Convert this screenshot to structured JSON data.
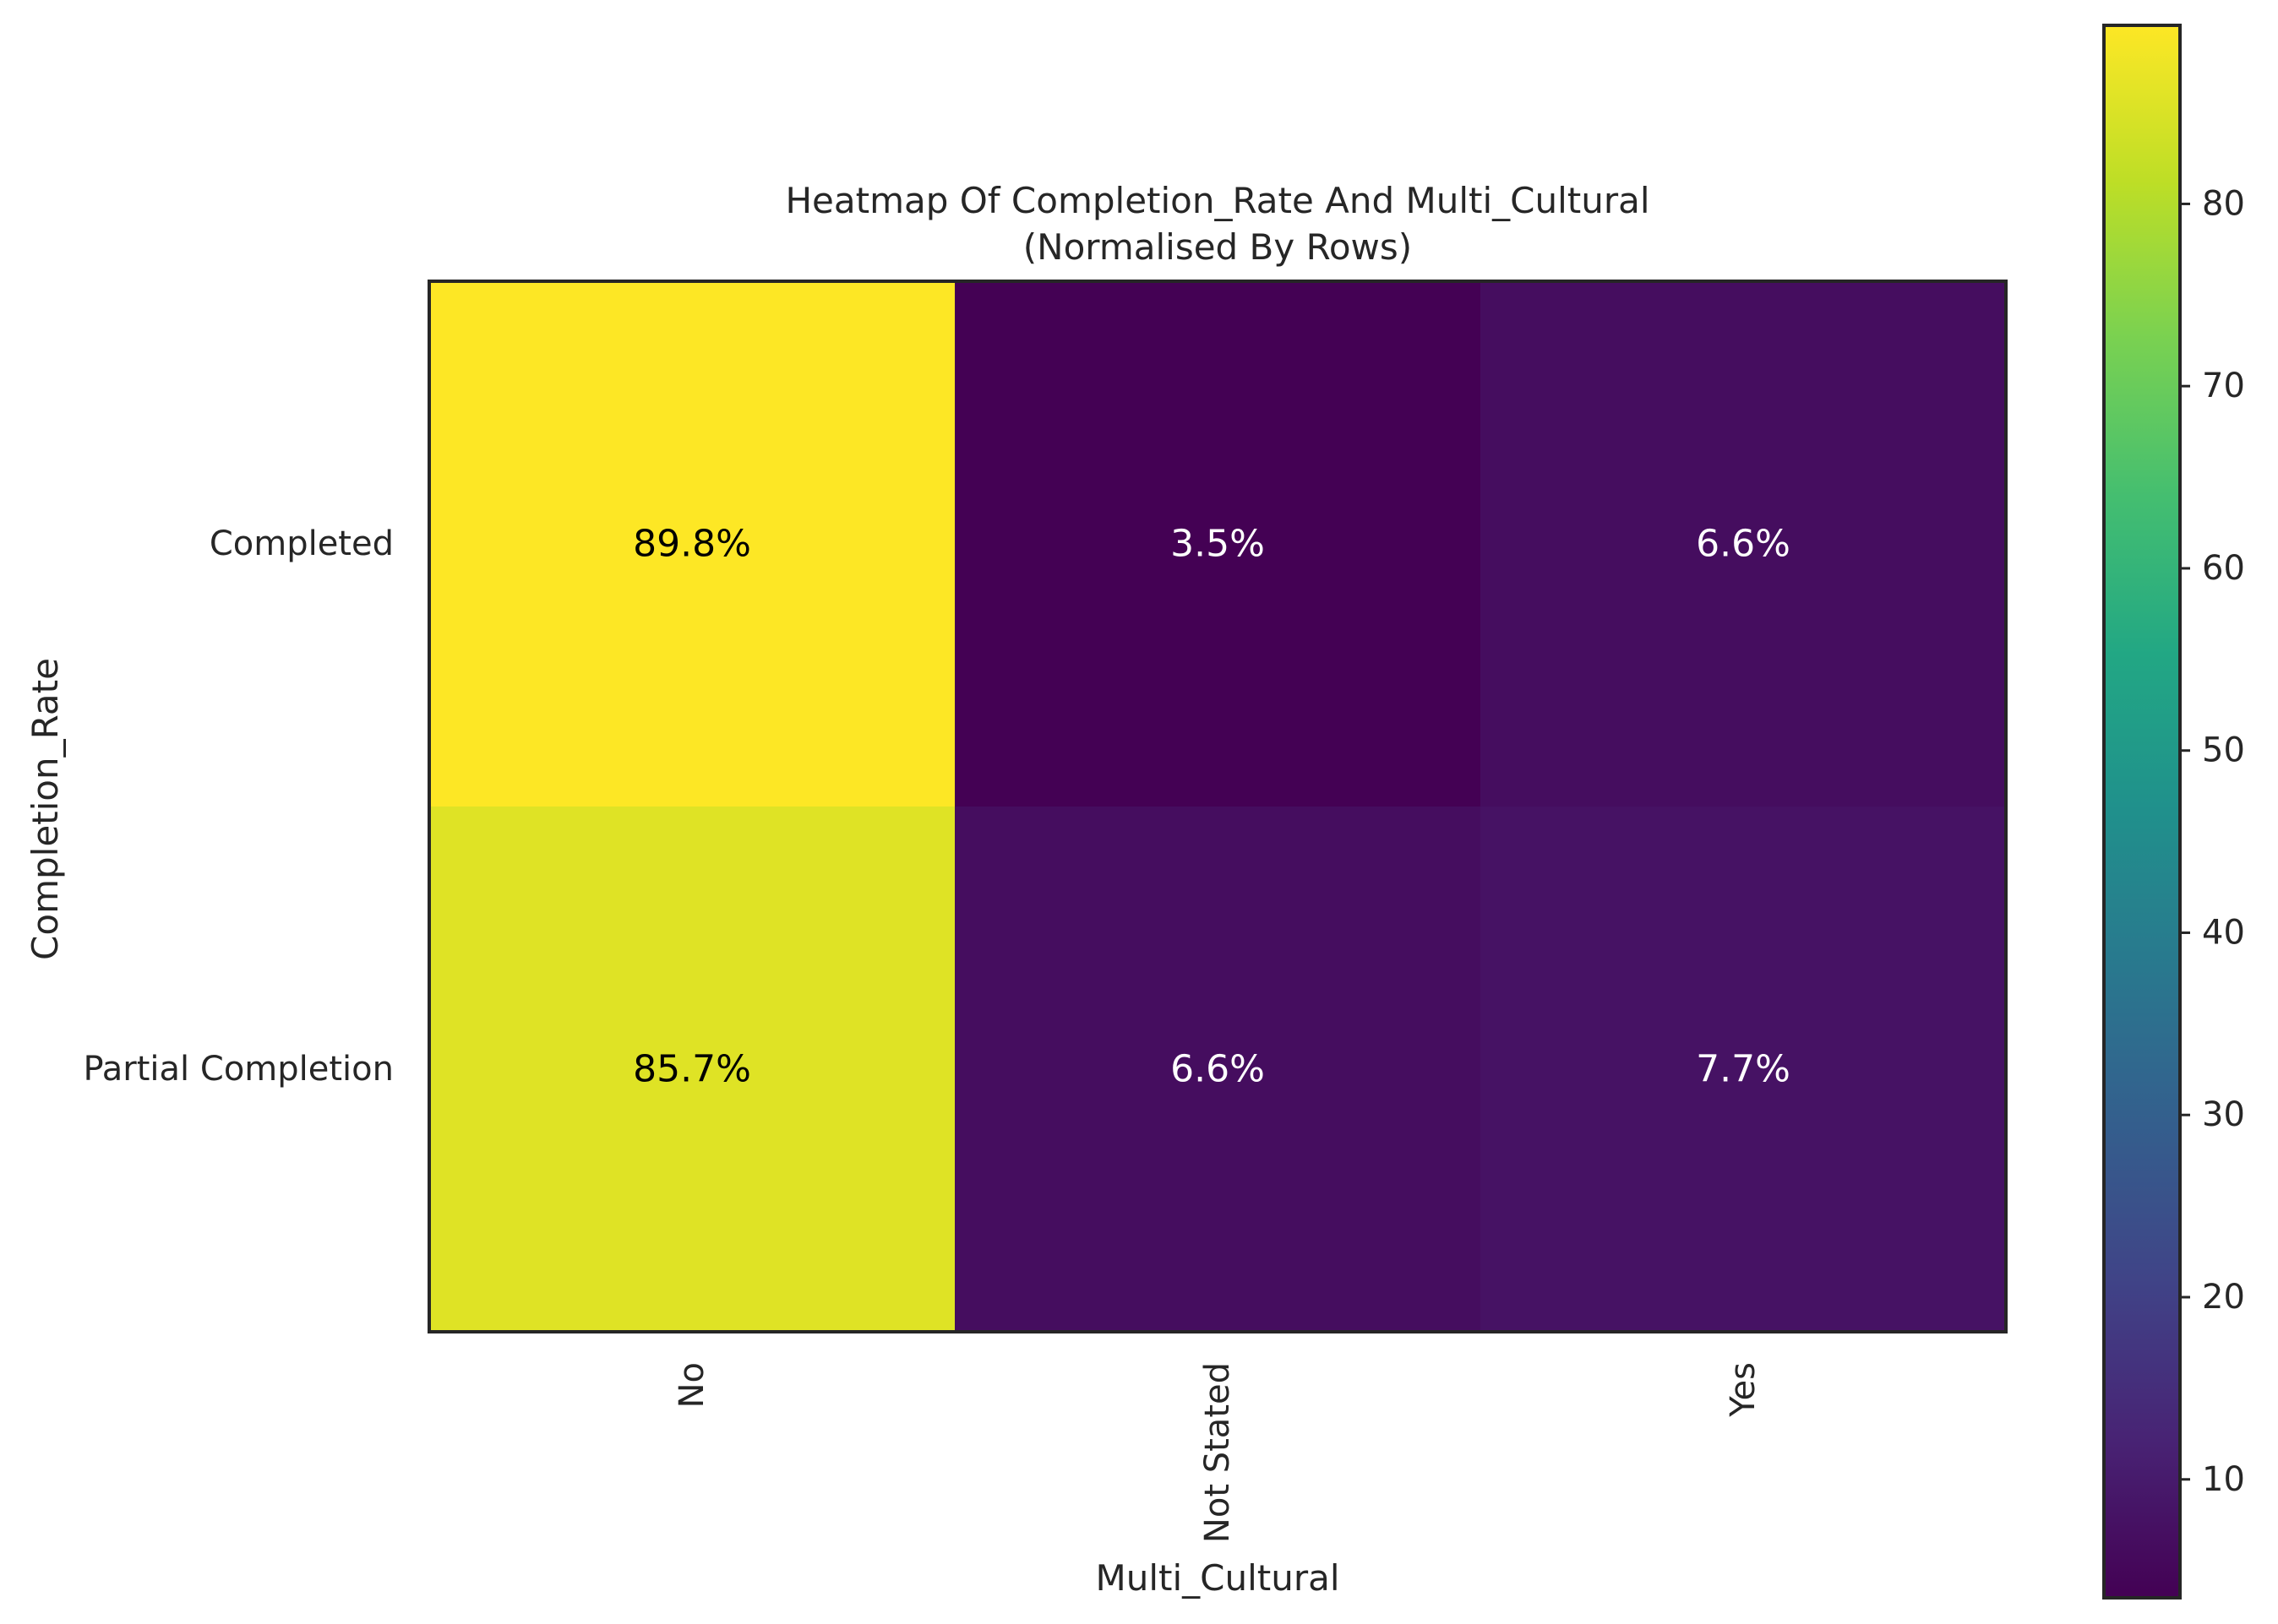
{
  "chart_data": {
    "type": "heatmap",
    "title": "Heatmap Of Completion_Rate And Multi_Cultural",
    "subtitle": "(Normalised By Rows)",
    "xlabel": "Multi_Cultural",
    "ylabel": "Completion_Rate",
    "x_categories": [
      "No",
      "Not Stated",
      "Yes"
    ],
    "y_categories": [
      "Completed",
      "Partial Completion"
    ],
    "values": [
      [
        89.8,
        3.5,
        6.6
      ],
      [
        85.7,
        6.6,
        7.7
      ]
    ],
    "cell_labels": [
      [
        "89.8%",
        "3.5%",
        "6.6%"
      ],
      [
        "85.7%",
        "6.6%",
        "7.7%"
      ]
    ],
    "colormap": "viridis",
    "color_range": [
      3.5,
      89.8
    ],
    "colorbar_ticks": [
      "10",
      "20",
      "30",
      "40",
      "50",
      "60",
      "70",
      "80"
    ],
    "colorbar_tick_values": [
      10,
      20,
      30,
      40,
      50,
      60,
      70,
      80
    ],
    "grid": false,
    "legend": "colorbar-right"
  }
}
